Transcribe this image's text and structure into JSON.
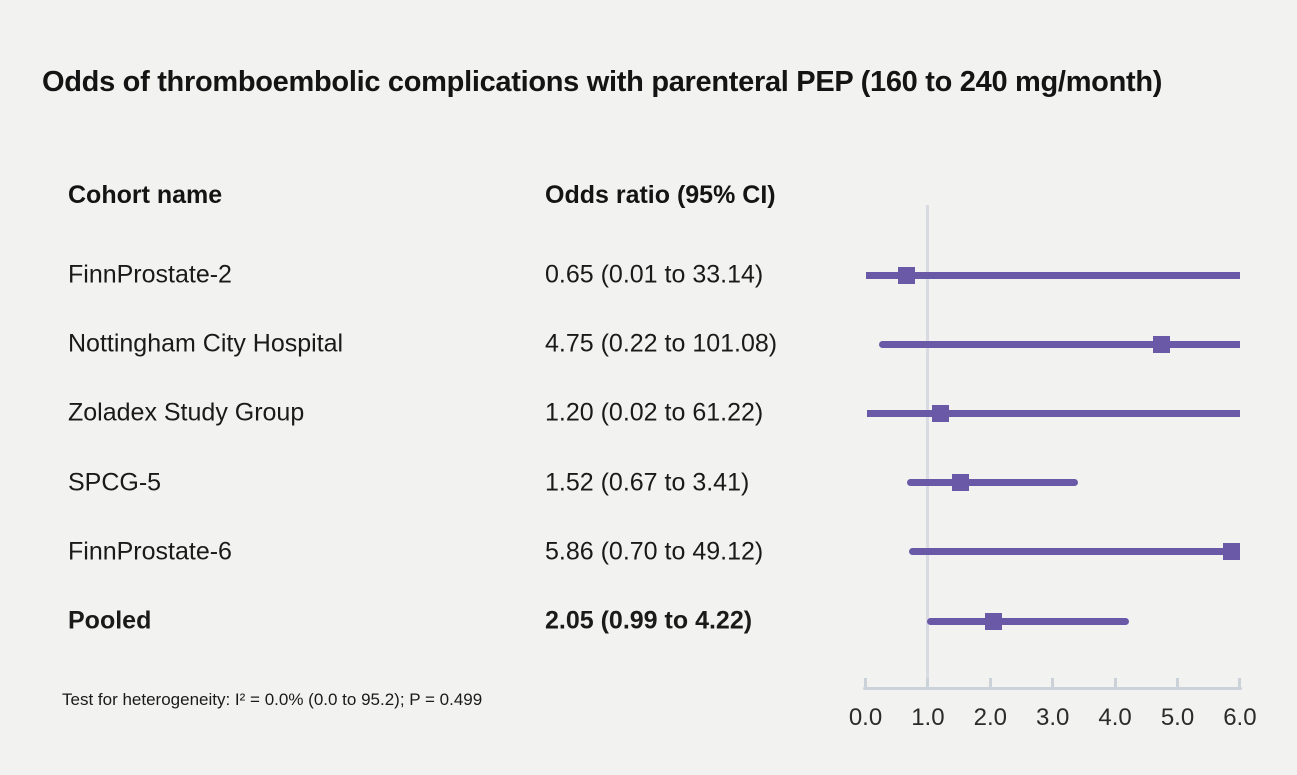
{
  "chart_data": {
    "type": "forest",
    "title": "Odds of thromboembolic complications with parenteral PEP (160 to 240 mg/month)",
    "columns": {
      "cohort": "Cohort name",
      "odds": "Odds ratio (95% CI)"
    },
    "rows": [
      {
        "name": "FinnProstate-2",
        "or_text": "0.65 (0.01 to 33.14)",
        "or": 0.65,
        "lo": 0.01,
        "hi": 33.14,
        "bold": false
      },
      {
        "name": "Nottingham City Hospital",
        "or_text": "4.75 (0.22 to 101.08)",
        "or": 4.75,
        "lo": 0.22,
        "hi": 101.08,
        "bold": false
      },
      {
        "name": "Zoladex Study Group",
        "or_text": "1.20 (0.02 to 61.22)",
        "or": 1.2,
        "lo": 0.02,
        "hi": 61.22,
        "bold": false
      },
      {
        "name": "SPCG-5",
        "or_text": "1.52 (0.67 to 3.41)",
        "or": 1.52,
        "lo": 0.67,
        "hi": 3.41,
        "bold": false
      },
      {
        "name": "FinnProstate-6",
        "or_text": "5.86 (0.70 to 49.12)",
        "or": 5.86,
        "lo": 0.7,
        "hi": 49.12,
        "bold": false
      },
      {
        "name": "Pooled",
        "or_text": "2.05 (0.99 to 4.22)",
        "or": 2.05,
        "lo": 0.99,
        "hi": 4.22,
        "bold": true
      }
    ],
    "footnote": "Test for heterogeneity: I² = 0.0% (0.0 to 95.2); P = 0.499",
    "axis": {
      "min": 0.0,
      "max": 6.0,
      "tick_values": [
        0,
        1,
        2,
        3,
        4,
        5,
        6
      ],
      "tick_labels": [
        "0.0",
        "1.0",
        "2.0",
        "3.0",
        "4.0",
        "5.0",
        "6.0"
      ],
      "reference_value": 1.0
    },
    "colors": {
      "line": "#6a59a6",
      "marker": "#6a59a6",
      "reference_line": "#d9dbe3",
      "axis": "#ccd2da",
      "background": "#f2f2f0",
      "text": "#1a1a1a"
    }
  }
}
